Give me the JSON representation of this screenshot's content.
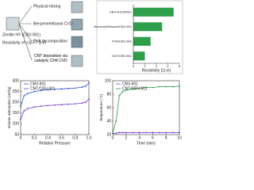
{
  "diagram": {
    "start_label": "Zeolite HY (CBV-901)",
    "resistivity_label": "Resistivity of >1E+7 Ω.m",
    "steps": [
      "Physical mixing",
      "Benzene/ethanol CVD",
      "PVA decomposition",
      "CNT deposition via catalytic CH4 CVD"
    ]
  },
  "chart_data": [
    {
      "type": "hbar",
      "categories": [
        "CBV-901/SPNC",
        "Benzene/Ethanol/CBV-901",
        "PVA/CBV-901",
        "CNT/CBV-901"
      ],
      "values": [
        7,
        5,
        3,
        2
      ],
      "color": "#2e9e4a",
      "xlabel": "Resistivity (Ω.m)",
      "xlim": [
        0,
        8
      ],
      "xticks": [
        0,
        2,
        4,
        6,
        8
      ]
    },
    {
      "type": "line",
      "xlabel": "Relative Pressure",
      "ylabel": "Volume adsorption (cm³/g)",
      "x": [
        0.0,
        0.05,
        0.1,
        0.2,
        0.3,
        0.4,
        0.5,
        0.6,
        0.7,
        0.8,
        0.9,
        0.95,
        1.0
      ],
      "series": [
        {
          "name": "CBV-901",
          "color": "#3355cc",
          "values": [
            180,
            230,
            240,
            250,
            255,
            258,
            260,
            262,
            264,
            266,
            270,
            275,
            290
          ]
        },
        {
          "name": "CNT/CBV-901",
          "color": "#7a3fcf",
          "values": [
            120,
            160,
            170,
            178,
            182,
            185,
            187,
            189,
            191,
            193,
            196,
            200,
            215
          ]
        }
      ],
      "xlim": [
        0,
        1
      ],
      "xticks": [
        0,
        0.2,
        0.4,
        0.6,
        0.8,
        {
          "value": 1,
          "label": "1.0"
        }
      ],
      "ylim": [
        50,
        300
      ],
      "yticks": [
        50,
        100,
        150,
        200,
        250,
        300
      ]
    },
    {
      "type": "line",
      "xlabel": "Time (min)",
      "ylabel": "Temperature (°C)",
      "x": [
        0,
        0.5,
        1,
        1.5,
        2,
        3,
        4,
        5,
        6,
        7,
        8,
        9,
        10
      ],
      "series": [
        {
          "name": "CBV-901",
          "color": "#7a3fcf",
          "values": [
            22,
            22,
            23,
            23,
            23,
            23,
            23,
            23,
            23,
            23,
            23,
            23,
            23
          ]
        },
        {
          "name": "CNT/CBV-901",
          "color": "#2e9e4a",
          "values": [
            22,
            40,
            78,
            84,
            86,
            88,
            89,
            90,
            90,
            91,
            91,
            91,
            92
          ]
        }
      ],
      "xlim": [
        0,
        10
      ],
      "xticks": [
        0,
        2,
        4,
        6,
        8,
        10
      ],
      "ylim": [
        20,
        100
      ],
      "yticks": [
        20,
        40,
        60,
        80,
        100
      ]
    }
  ]
}
